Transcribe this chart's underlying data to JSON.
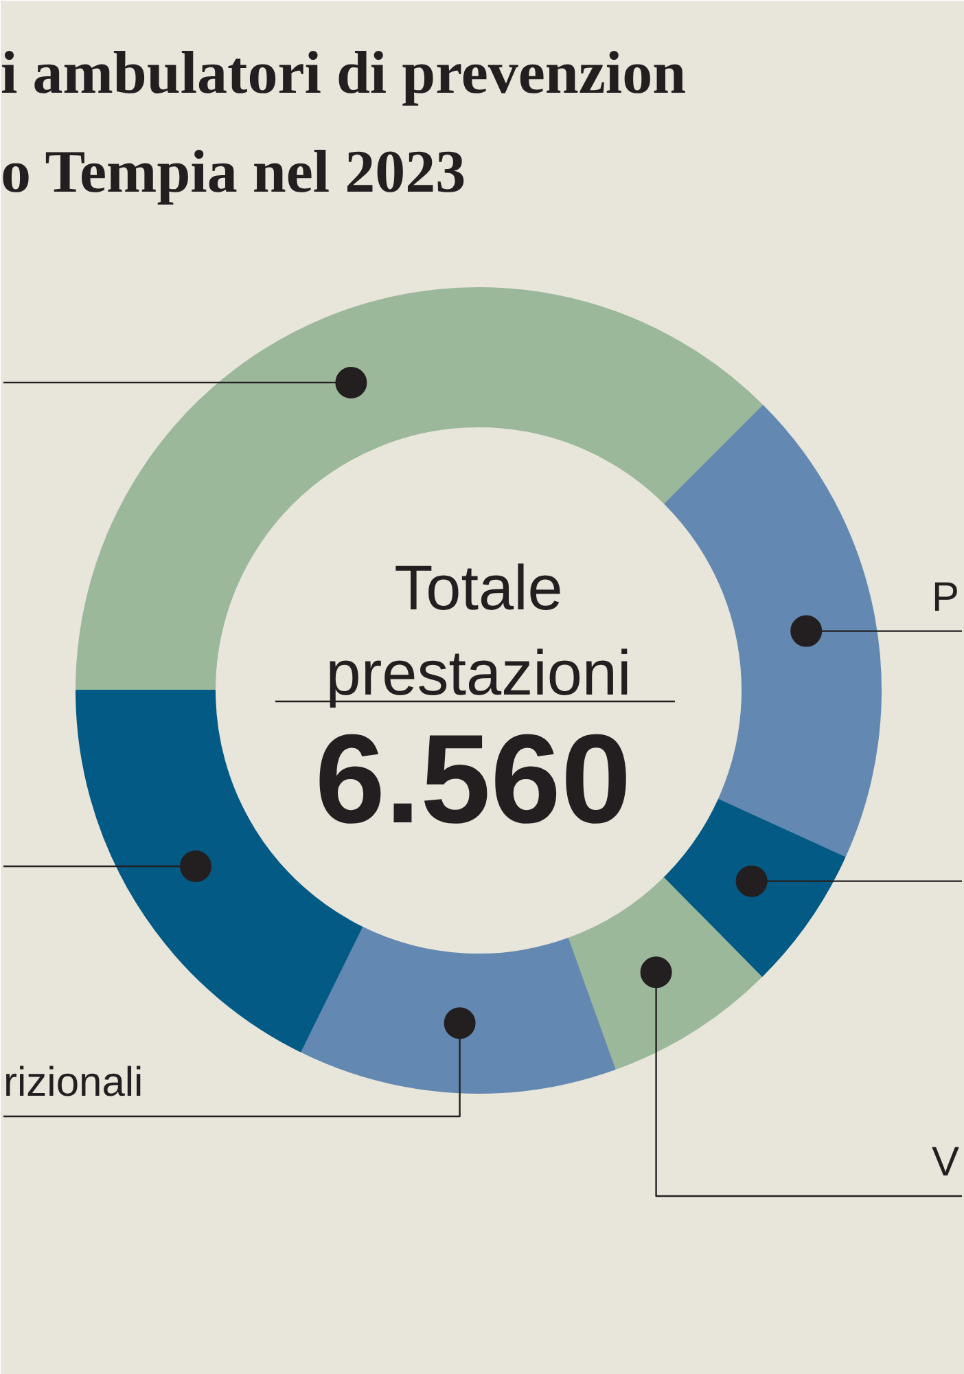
{
  "chart_data": {
    "type": "donut",
    "title": "i ambulatori di prevenzion",
    "subtitle": "o Tempia nel 2023",
    "categories": [
      null,
      "P",
      null,
      "V",
      "rizionali",
      null
    ],
    "values": [
      37.5,
      19.3,
      5.8,
      6.9,
      12.8,
      17.7
    ],
    "colors": [
      "#9bb89a",
      "#6389b2",
      "#035a85",
      "#9bb89a",
      "#6389b2",
      "#035a85"
    ],
    "annotations": [
      "Totale prestazioni",
      "6.560"
    ]
  }
}
